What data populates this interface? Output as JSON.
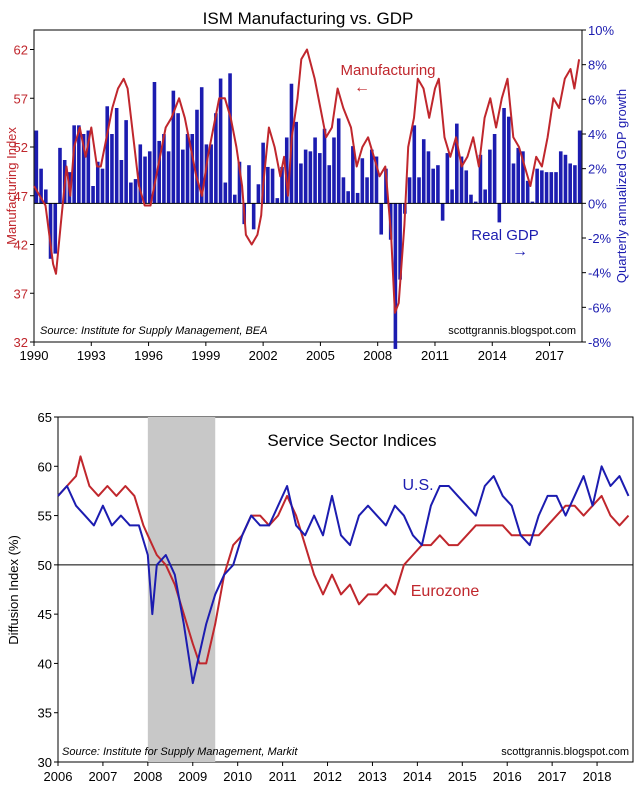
{
  "colors": {
    "red": "#c0272d",
    "blue": "#1c1cb0",
    "shade": "#c8c8c8"
  },
  "chart_data": [
    {
      "type": "bar+line",
      "title": "ISM Manufacturing vs. GDP",
      "ylabel_left": "Manufacturing Index",
      "ylabel_right": "Quarterly annualized GDP growth",
      "left_ticks": [
        "62",
        "57",
        "52",
        "47",
        "42",
        "37",
        "32"
      ],
      "right_ticks": [
        "10%",
        "8%",
        "6%",
        "4%",
        "2%",
        "0%",
        "-2%",
        "-4%",
        "-6%",
        "-8%"
      ],
      "x_ticks": [
        "1990",
        "1993",
        "1996",
        "1999",
        "2002",
        "2005",
        "2008",
        "2011",
        "2014",
        "2017"
      ],
      "ylim_left": [
        32,
        64
      ],
      "ylim_right": [
        -8,
        10
      ],
      "xlim": [
        1990,
        2018.7
      ],
      "series_labels": {
        "manufacturing": "Manufacturing",
        "gdp": "Real GDP"
      },
      "arrow_left": "←",
      "arrow_right": "→",
      "source": "Source:  Institute for Supply Management, BEA",
      "credit": "scottgrannis.blogspot.com",
      "manufacturing": [
        [
          1990.0,
          48
        ],
        [
          1990.3,
          47
        ],
        [
          1990.6,
          46
        ],
        [
          1990.8,
          43
        ],
        [
          1991.0,
          40
        ],
        [
          1991.15,
          39
        ],
        [
          1991.4,
          44
        ],
        [
          1991.7,
          50
        ],
        [
          1991.9,
          47
        ],
        [
          1992.1,
          52
        ],
        [
          1992.4,
          54
        ],
        [
          1992.7,
          51
        ],
        [
          1993.0,
          54
        ],
        [
          1993.3,
          50
        ],
        [
          1993.5,
          50
        ],
        [
          1993.8,
          53
        ],
        [
          1994.1,
          56
        ],
        [
          1994.4,
          58
        ],
        [
          1994.7,
          59
        ],
        [
          1994.9,
          58
        ],
        [
          1995.2,
          53
        ],
        [
          1995.5,
          48
        ],
        [
          1995.8,
          46
        ],
        [
          1996.1,
          46
        ],
        [
          1996.4,
          49
        ],
        [
          1996.7,
          52
        ],
        [
          1996.9,
          54
        ],
        [
          1997.2,
          55
        ],
        [
          1997.6,
          57
        ],
        [
          1997.9,
          55
        ],
        [
          1998.2,
          52
        ],
        [
          1998.5,
          49
        ],
        [
          1998.8,
          47
        ],
        [
          1999.1,
          51
        ],
        [
          1999.4,
          54
        ],
        [
          1999.7,
          57
        ],
        [
          2000.0,
          57
        ],
        [
          2000.3,
          55
        ],
        [
          2000.6,
          52
        ],
        [
          2000.9,
          48
        ],
        [
          2001.1,
          43
        ],
        [
          2001.4,
          42
        ],
        [
          2001.7,
          43
        ],
        [
          2001.9,
          45
        ],
        [
          2002.0,
          48
        ],
        [
          2002.3,
          54
        ],
        [
          2002.6,
          52
        ],
        [
          2002.9,
          49
        ],
        [
          2003.1,
          51
        ],
        [
          2003.3,
          47
        ],
        [
          2003.5,
          53
        ],
        [
          2003.8,
          57
        ],
        [
          2004.0,
          61
        ],
        [
          2004.3,
          62
        ],
        [
          2004.7,
          59
        ],
        [
          2005.0,
          56
        ],
        [
          2005.3,
          53
        ],
        [
          2005.6,
          54
        ],
        [
          2005.9,
          58
        ],
        [
          2006.2,
          56
        ],
        [
          2006.6,
          54
        ],
        [
          2006.9,
          50
        ],
        [
          2007.2,
          52
        ],
        [
          2007.5,
          53
        ],
        [
          2007.8,
          51
        ],
        [
          2008.1,
          49
        ],
        [
          2008.4,
          50
        ],
        [
          2008.7,
          43
        ],
        [
          2008.9,
          35
        ],
        [
          2009.1,
          36
        ],
        [
          2009.4,
          44
        ],
        [
          2009.6,
          52
        ],
        [
          2009.9,
          55
        ],
        [
          2010.1,
          59
        ],
        [
          2010.4,
          58
        ],
        [
          2010.7,
          55
        ],
        [
          2011.0,
          58
        ],
        [
          2011.2,
          59
        ],
        [
          2011.5,
          53
        ],
        [
          2011.8,
          51
        ],
        [
          2012.1,
          53
        ],
        [
          2012.4,
          50
        ],
        [
          2012.7,
          51
        ],
        [
          2013.0,
          53
        ],
        [
          2013.3,
          50
        ],
        [
          2013.6,
          55
        ],
        [
          2013.9,
          57
        ],
        [
          2014.2,
          54
        ],
        [
          2014.5,
          57
        ],
        [
          2014.8,
          59
        ],
        [
          2015.1,
          53
        ],
        [
          2015.4,
          52
        ],
        [
          2015.7,
          50
        ],
        [
          2016.0,
          48
        ],
        [
          2016.3,
          51
        ],
        [
          2016.6,
          50
        ],
        [
          2016.9,
          53
        ],
        [
          2017.2,
          57
        ],
        [
          2017.5,
          56
        ],
        [
          2017.8,
          59
        ],
        [
          2018.1,
          60
        ],
        [
          2018.3,
          58
        ],
        [
          2018.55,
          61
        ]
      ],
      "gdp": [
        4.2,
        2.0,
        0.8,
        -3.2,
        -2.9,
        3.2,
        2.5,
        1.8,
        4.5,
        4.5,
        4.0,
        4.2,
        1.0,
        2.4,
        2.0,
        5.6,
        4.0,
        5.5,
        2.5,
        4.8,
        1.2,
        1.4,
        3.4,
        2.7,
        3.0,
        7.0,
        3.6,
        4.0,
        3.0,
        6.5,
        5.2,
        3.1,
        4.0,
        4.0,
        5.4,
        6.7,
        3.4,
        3.4,
        5.2,
        7.2,
        1.2,
        7.5,
        0.5,
        2.4,
        -1.2,
        2.2,
        -1.5,
        1.1,
        3.5,
        2.1,
        2.0,
        0.3,
        2.1,
        3.8,
        6.9,
        4.7,
        2.3,
        3.1,
        3.0,
        3.8,
        2.9,
        4.3,
        2.2,
        3.8,
        4.9,
        1.5,
        0.7,
        3.3,
        0.6,
        2.6,
        1.5,
        3.1,
        2.7,
        -1.8,
        2.0,
        -2.1,
        -8.4,
        -4.4,
        -0.6,
        1.5,
        4.5,
        1.5,
        3.7,
        3.0,
        2.0,
        2.2,
        -1.0,
        2.9,
        0.8,
        4.6,
        2.7,
        1.9,
        0.5,
        0.1,
        2.8,
        0.8,
        3.1,
        4.0,
        -1.1,
        5.5,
        5.0,
        2.3,
        3.2,
        3.0,
        1.3,
        0.1,
        2.0,
        1.9,
        1.8,
        1.8,
        1.8,
        3.0,
        2.8,
        2.3,
        2.2,
        4.2
      ]
    },
    {
      "type": "line",
      "title": "Service Sector Indices",
      "ylabel": "Diffusion Index (%)",
      "y_ticks": [
        "65",
        "60",
        "55",
        "50",
        "45",
        "40",
        "35",
        "30"
      ],
      "x_ticks": [
        "2006",
        "2007",
        "2008",
        "2009",
        "2010",
        "2011",
        "2012",
        "2013",
        "2014",
        "2015",
        "2016",
        "2017",
        "2018"
      ],
      "ylim": [
        30,
        65
      ],
      "xlim": [
        2006,
        2018.8
      ],
      "recession_shade": [
        2008.0,
        2009.5
      ],
      "reference_line": 50,
      "series_labels": {
        "us": "U.S.",
        "eurozone": "Eurozone"
      },
      "source": "Source:  Institute for Supply Management, Markit",
      "credit": "scottgrannis.blogspot.com",
      "us": [
        [
          2006.0,
          57
        ],
        [
          2006.2,
          58
        ],
        [
          2006.4,
          56
        ],
        [
          2006.6,
          55
        ],
        [
          2006.8,
          54
        ],
        [
          2007.0,
          56
        ],
        [
          2007.2,
          54
        ],
        [
          2007.4,
          55
        ],
        [
          2007.6,
          54
        ],
        [
          2007.8,
          54
        ],
        [
          2008.0,
          51
        ],
        [
          2008.1,
          45
        ],
        [
          2008.2,
          50
        ],
        [
          2008.4,
          51
        ],
        [
          2008.6,
          49
        ],
        [
          2008.8,
          44
        ],
        [
          2009.0,
          38
        ],
        [
          2009.15,
          41
        ],
        [
          2009.3,
          44
        ],
        [
          2009.5,
          47
        ],
        [
          2009.7,
          49
        ],
        [
          2009.9,
          50
        ],
        [
          2010.1,
          53
        ],
        [
          2010.3,
          55
        ],
        [
          2010.5,
          54
        ],
        [
          2010.7,
          54
        ],
        [
          2010.9,
          56
        ],
        [
          2011.1,
          58
        ],
        [
          2011.3,
          54
        ],
        [
          2011.5,
          53
        ],
        [
          2011.7,
          55
        ],
        [
          2011.9,
          53
        ],
        [
          2012.1,
          57
        ],
        [
          2012.3,
          53
        ],
        [
          2012.5,
          52
        ],
        [
          2012.7,
          55
        ],
        [
          2012.9,
          56
        ],
        [
          2013.1,
          55
        ],
        [
          2013.3,
          54
        ],
        [
          2013.5,
          56
        ],
        [
          2013.7,
          55
        ],
        [
          2013.9,
          53
        ],
        [
          2014.1,
          52
        ],
        [
          2014.3,
          56
        ],
        [
          2014.5,
          58
        ],
        [
          2014.7,
          58
        ],
        [
          2014.9,
          57
        ],
        [
          2015.1,
          56
        ],
        [
          2015.3,
          55
        ],
        [
          2015.5,
          58
        ],
        [
          2015.7,
          59
        ],
        [
          2015.9,
          57
        ],
        [
          2016.1,
          56
        ],
        [
          2016.3,
          53
        ],
        [
          2016.5,
          52
        ],
        [
          2016.7,
          55
        ],
        [
          2016.9,
          57
        ],
        [
          2017.1,
          57
        ],
        [
          2017.3,
          55
        ],
        [
          2017.5,
          57
        ],
        [
          2017.7,
          59
        ],
        [
          2017.9,
          56
        ],
        [
          2018.1,
          60
        ],
        [
          2018.3,
          58
        ],
        [
          2018.5,
          59
        ],
        [
          2018.7,
          57
        ]
      ],
      "eurozone": [
        [
          2006.0,
          57
        ],
        [
          2006.2,
          58
        ],
        [
          2006.4,
          59
        ],
        [
          2006.5,
          61
        ],
        [
          2006.7,
          58
        ],
        [
          2006.9,
          57
        ],
        [
          2007.1,
          58
        ],
        [
          2007.3,
          57
        ],
        [
          2007.5,
          58
        ],
        [
          2007.7,
          57
        ],
        [
          2007.9,
          54
        ],
        [
          2008.0,
          53
        ],
        [
          2008.2,
          51
        ],
        [
          2008.4,
          50
        ],
        [
          2008.6,
          48
        ],
        [
          2008.8,
          45
        ],
        [
          2009.0,
          42
        ],
        [
          2009.15,
          40
        ],
        [
          2009.3,
          40
        ],
        [
          2009.5,
          44
        ],
        [
          2009.7,
          49
        ],
        [
          2009.9,
          52
        ],
        [
          2010.1,
          53
        ],
        [
          2010.3,
          55
        ],
        [
          2010.5,
          55
        ],
        [
          2010.7,
          54
        ],
        [
          2010.9,
          55
        ],
        [
          2011.1,
          57
        ],
        [
          2011.3,
          55
        ],
        [
          2011.5,
          52
        ],
        [
          2011.7,
          49
        ],
        [
          2011.9,
          47
        ],
        [
          2012.1,
          49
        ],
        [
          2012.3,
          47
        ],
        [
          2012.5,
          48
        ],
        [
          2012.7,
          46
        ],
        [
          2012.9,
          47
        ],
        [
          2013.1,
          47
        ],
        [
          2013.3,
          48
        ],
        [
          2013.5,
          47
        ],
        [
          2013.7,
          50
        ],
        [
          2013.9,
          51
        ],
        [
          2014.1,
          52
        ],
        [
          2014.3,
          52
        ],
        [
          2014.5,
          53
        ],
        [
          2014.7,
          52
        ],
        [
          2014.9,
          52
        ],
        [
          2015.1,
          53
        ],
        [
          2015.3,
          54
        ],
        [
          2015.5,
          54
        ],
        [
          2015.7,
          54
        ],
        [
          2015.9,
          54
        ],
        [
          2016.1,
          53
        ],
        [
          2016.3,
          53
        ],
        [
          2016.5,
          53
        ],
        [
          2016.7,
          53
        ],
        [
          2016.9,
          54
        ],
        [
          2017.1,
          55
        ],
        [
          2017.3,
          56
        ],
        [
          2017.5,
          56
        ],
        [
          2017.7,
          55
        ],
        [
          2017.9,
          56
        ],
        [
          2018.1,
          57
        ],
        [
          2018.3,
          55
        ],
        [
          2018.5,
          54
        ],
        [
          2018.7,
          55
        ]
      ]
    }
  ]
}
